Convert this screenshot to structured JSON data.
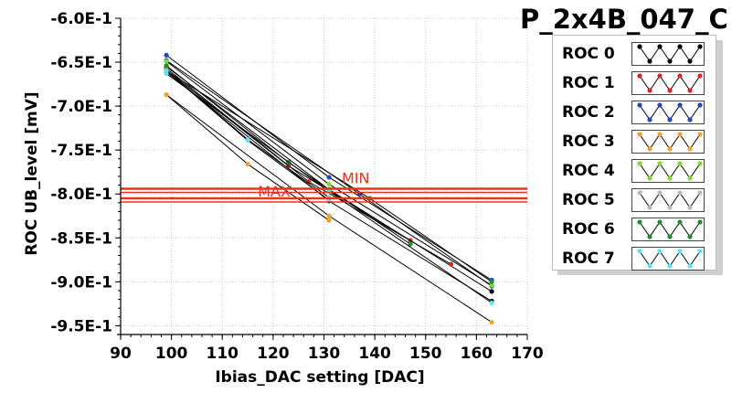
{
  "title": "P_2x4B_047_C",
  "legend_entries": [
    {
      "label": "ROC 0",
      "color": "#000000"
    },
    {
      "label": "ROC 1",
      "color": "#e3241b"
    },
    {
      "label": "ROC 2",
      "color": "#1f48c8"
    },
    {
      "label": "ROC 3",
      "color": "#f0a22a"
    },
    {
      "label": "ROC 4",
      "color": "#7bdc2e"
    },
    {
      "label": "ROC 5",
      "color": "#b9b9b9"
    },
    {
      "label": "ROC 6",
      "color": "#1f8f2a"
    },
    {
      "label": "ROC 7",
      "color": "#5ce4f2"
    }
  ],
  "chart_data": {
    "type": "line",
    "title": "P_2x4B_047_C",
    "xlabel": "Ibias_DAC setting [DAC]",
    "ylabel": "ROC UB_level [mV]",
    "xlim": [
      90,
      170
    ],
    "ylim": [
      -0.96,
      -0.6
    ],
    "x_ticks": [
      90,
      100,
      110,
      120,
      130,
      140,
      150,
      160,
      170
    ],
    "x_tick_labels": [
      "90",
      "100",
      "110",
      "120",
      "130",
      "140",
      "150",
      "160",
      "170"
    ],
    "y_ticks": [
      -0.6,
      -0.65,
      -0.7,
      -0.75,
      -0.8,
      -0.85,
      -0.9,
      -0.95
    ],
    "y_tick_labels": [
      "-6.0E-1",
      "-6.5E-1",
      "-7.0E-1",
      "-7.5E-1",
      "-8.0E-1",
      "-8.5E-1",
      "-9.0E-1",
      "-9.5E-1"
    ],
    "grid": true,
    "legend_position": "right",
    "series": [
      {
        "name": "ROC 0",
        "color": "#000000",
        "x": [
          99,
          131,
          163
        ],
        "y": [
          -0.655,
          -0.795,
          -0.911
        ]
      },
      {
        "name": "ROC 0",
        "color": "#000000",
        "x": [
          99,
          131,
          163
        ],
        "y": [
          -0.661,
          -0.808,
          -0.922
        ]
      },
      {
        "name": "ROC 1",
        "color": "#e3241b",
        "x": [
          99,
          123,
          147
        ],
        "y": [
          -0.659,
          -0.768,
          -0.853
        ]
      },
      {
        "name": "ROC 1",
        "color": "#e3241b",
        "x": [
          99,
          127,
          155
        ],
        "y": [
          -0.657,
          -0.786,
          -0.88
        ]
      },
      {
        "name": "ROC 2",
        "color": "#1f48c8",
        "x": [
          99,
          131,
          163
        ],
        "y": [
          -0.642,
          -0.781,
          -0.898
        ]
      },
      {
        "name": "ROC 2",
        "color": "#1f48c8",
        "x": [
          99,
          137,
          163
        ],
        "y": [
          -0.648,
          -0.8,
          -0.905
        ]
      },
      {
        "name": "ROC 3",
        "color": "#f0a22a",
        "x": [
          99,
          115,
          131
        ],
        "y": [
          -0.687,
          -0.766,
          -0.83
        ]
      },
      {
        "name": "ROC 3",
        "color": "#f0a22a",
        "x": [
          99,
          131,
          163
        ],
        "y": [
          -0.687,
          -0.825,
          -0.946
        ]
      },
      {
        "name": "ROC 4",
        "color": "#7bdc2e",
        "x": [
          99,
          131,
          163
        ],
        "y": [
          -0.649,
          -0.789,
          -0.904
        ]
      },
      {
        "name": "ROC 5",
        "color": "#b9b9b9",
        "x": [
          99,
          115,
          131
        ],
        "y": [
          -0.659,
          -0.738,
          -0.804
        ]
      },
      {
        "name": "ROC 6",
        "color": "#1f8f2a",
        "x": [
          99,
          123,
          147
        ],
        "y": [
          -0.654,
          -0.764,
          -0.857
        ]
      },
      {
        "name": "ROC 6",
        "color": "#1f8f2a",
        "x": [
          99,
          139,
          163
        ],
        "y": [
          -0.66,
          -0.805,
          -0.9
        ]
      },
      {
        "name": "ROC 7",
        "color": "#5ce4f2",
        "x": [
          99,
          115,
          131
        ],
        "y": [
          -0.66,
          -0.739,
          -0.807
        ]
      },
      {
        "name": "ROC 7",
        "color": "#5ce4f2",
        "x": [
          99,
          131,
          163
        ],
        "y": [
          -0.663,
          -0.797,
          -0.924
        ]
      }
    ],
    "reference_lines": [
      {
        "label": "MIN",
        "y": -0.794,
        "color": "#e8341c"
      },
      {
        "label": "MAX",
        "y": -0.805,
        "color": "#e8341c"
      }
    ]
  }
}
